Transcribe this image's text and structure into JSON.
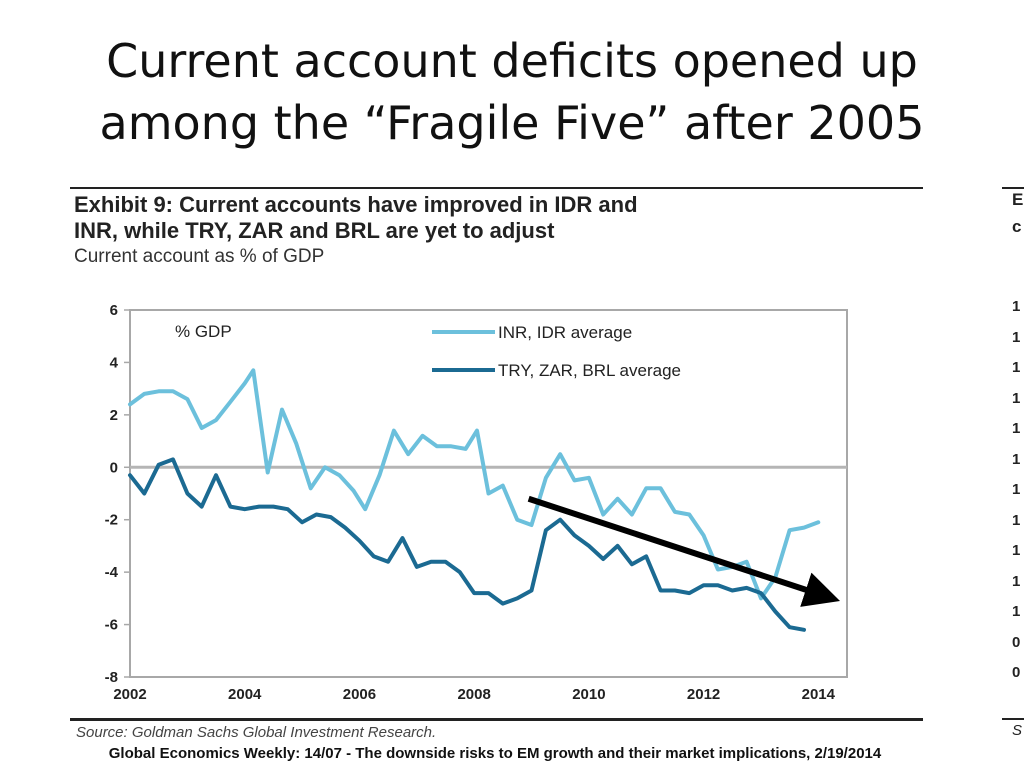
{
  "slide": {
    "title_line1": "Current account deficits opened up",
    "title_line2": "among the “Fragile Five” after 2005",
    "footer": "Global Economics Weekly: 14/07 - The downside risks to EM growth and their market implications, 2/19/2014"
  },
  "exhibit": {
    "title_line1": "Exhibit 9: Current accounts have improved in IDR and",
    "title_line2": "INR, while TRY, ZAR and BRL are yet to adjust",
    "subtitle": "Current account as % of GDP",
    "source": "Source: Goldman Sachs Global Investment Research."
  },
  "clipped_panel": {
    "heading_chars": [
      "E",
      "c"
    ],
    "tick_chars": [
      "1",
      "1",
      "1",
      "1",
      "1",
      "1",
      "1",
      "1",
      "1",
      "1",
      "1",
      "0",
      "0"
    ],
    "source_chars": "S"
  },
  "chart_data": {
    "type": "line",
    "ylabel": "% GDP",
    "xlim": [
      2002,
      2014.5
    ],
    "ylim": [
      -8,
      6
    ],
    "x_ticks": [
      2002,
      2004,
      2006,
      2008,
      2010,
      2012,
      2014
    ],
    "y_ticks": [
      6,
      4,
      2,
      0,
      -2,
      -4,
      -6,
      -8
    ],
    "grid": false,
    "zero_line": true,
    "legend_position": "top-right",
    "series": [
      {
        "name": "INR, IDR average",
        "color": "#6cc0dc",
        "points": [
          [
            2002.0,
            2.4
          ],
          [
            2002.25,
            2.8
          ],
          [
            2002.5,
            2.9
          ],
          [
            2002.75,
            2.9
          ],
          [
            2003.0,
            2.6
          ],
          [
            2003.25,
            1.5
          ],
          [
            2003.5,
            1.8
          ],
          [
            2003.75,
            2.5
          ],
          [
            2004.0,
            3.2
          ],
          [
            2004.15,
            3.7
          ],
          [
            2004.4,
            -0.2
          ],
          [
            2004.65,
            2.2
          ],
          [
            2004.9,
            0.9
          ],
          [
            2005.15,
            -0.8
          ],
          [
            2005.4,
            0.0
          ],
          [
            2005.65,
            -0.3
          ],
          [
            2005.9,
            -0.9
          ],
          [
            2006.1,
            -1.6
          ],
          [
            2006.35,
            -0.3
          ],
          [
            2006.6,
            1.4
          ],
          [
            2006.85,
            0.5
          ],
          [
            2007.1,
            1.2
          ],
          [
            2007.35,
            0.8
          ],
          [
            2007.6,
            0.8
          ],
          [
            2007.85,
            0.7
          ],
          [
            2008.05,
            1.4
          ],
          [
            2008.25,
            -1.0
          ],
          [
            2008.5,
            -0.7
          ],
          [
            2008.75,
            -2.0
          ],
          [
            2009.0,
            -2.2
          ],
          [
            2009.25,
            -0.4
          ],
          [
            2009.5,
            0.5
          ],
          [
            2009.75,
            -0.5
          ],
          [
            2010.0,
            -0.4
          ],
          [
            2010.25,
            -1.8
          ],
          [
            2010.5,
            -1.2
          ],
          [
            2010.75,
            -1.8
          ],
          [
            2011.0,
            -0.8
          ],
          [
            2011.25,
            -0.8
          ],
          [
            2011.5,
            -1.7
          ],
          [
            2011.75,
            -1.8
          ],
          [
            2012.0,
            -2.6
          ],
          [
            2012.25,
            -3.9
          ],
          [
            2012.5,
            -3.8
          ],
          [
            2012.75,
            -3.6
          ],
          [
            2013.0,
            -5.0
          ],
          [
            2013.25,
            -4.2
          ],
          [
            2013.5,
            -2.4
          ],
          [
            2013.75,
            -2.3
          ],
          [
            2014.0,
            -2.1
          ]
        ]
      },
      {
        "name": "TRY, ZAR, BRL average",
        "color": "#1b6a92",
        "points": [
          [
            2002.0,
            -0.3
          ],
          [
            2002.25,
            -1.0
          ],
          [
            2002.5,
            0.1
          ],
          [
            2002.75,
            0.3
          ],
          [
            2003.0,
            -1.0
          ],
          [
            2003.25,
            -1.5
          ],
          [
            2003.5,
            -0.3
          ],
          [
            2003.75,
            -1.5
          ],
          [
            2004.0,
            -1.6
          ],
          [
            2004.25,
            -1.5
          ],
          [
            2004.5,
            -1.5
          ],
          [
            2004.75,
            -1.6
          ],
          [
            2005.0,
            -2.1
          ],
          [
            2005.25,
            -1.8
          ],
          [
            2005.5,
            -1.9
          ],
          [
            2005.75,
            -2.3
          ],
          [
            2006.0,
            -2.8
          ],
          [
            2006.25,
            -3.4
          ],
          [
            2006.5,
            -3.6
          ],
          [
            2006.75,
            -2.7
          ],
          [
            2007.0,
            -3.8
          ],
          [
            2007.25,
            -3.6
          ],
          [
            2007.5,
            -3.6
          ],
          [
            2007.75,
            -4.0
          ],
          [
            2008.0,
            -4.8
          ],
          [
            2008.25,
            -4.8
          ],
          [
            2008.5,
            -5.2
          ],
          [
            2008.75,
            -5.0
          ],
          [
            2009.0,
            -4.7
          ],
          [
            2009.25,
            -2.4
          ],
          [
            2009.5,
            -2.0
          ],
          [
            2009.75,
            -2.6
          ],
          [
            2010.0,
            -3.0
          ],
          [
            2010.25,
            -3.5
          ],
          [
            2010.5,
            -3.0
          ],
          [
            2010.75,
            -3.7
          ],
          [
            2011.0,
            -3.4
          ],
          [
            2011.25,
            -4.7
          ],
          [
            2011.5,
            -4.7
          ],
          [
            2011.75,
            -4.8
          ],
          [
            2012.0,
            -4.5
          ],
          [
            2012.25,
            -4.5
          ],
          [
            2012.5,
            -4.7
          ],
          [
            2012.75,
            -4.6
          ],
          [
            2013.0,
            -4.8
          ],
          [
            2013.25,
            -5.5
          ],
          [
            2013.5,
            -6.1
          ],
          [
            2013.75,
            -6.2
          ]
        ]
      }
    ],
    "annotation_arrow": {
      "from": [
        2008.95,
        -1.2
      ],
      "to": [
        2014.1,
        -4.9
      ],
      "color": "#000000"
    }
  }
}
